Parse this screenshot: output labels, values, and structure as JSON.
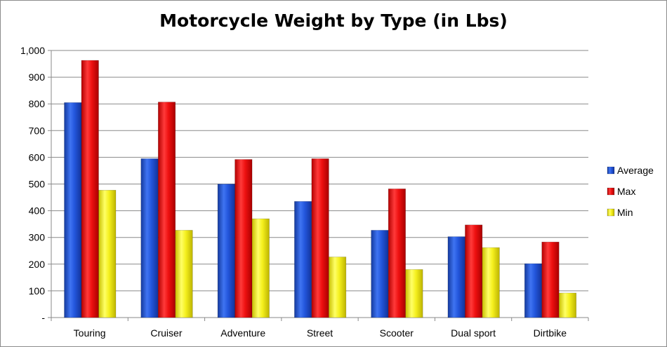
{
  "chart_data": {
    "type": "bar",
    "title": "Motorcycle Weight by Type (in Lbs)",
    "xlabel": "",
    "ylabel": "",
    "categories": [
      "Touring",
      "Cruiser",
      "Adventure",
      "Street",
      "Scooter",
      "Dual sport",
      "Dirtbike"
    ],
    "series": [
      {
        "name": "Average",
        "color": "#1f4fd6",
        "values": [
          805,
          595,
          500,
          435,
          327,
          303,
          202
        ]
      },
      {
        "name": "Max",
        "color": "#ee0f0f",
        "values": [
          963,
          807,
          592,
          595,
          482,
          347,
          283
        ]
      },
      {
        "name": "Min",
        "color": "#f2ee1a",
        "values": [
          477,
          327,
          370,
          227,
          180,
          262,
          92
        ]
      }
    ],
    "ylim": [
      0,
      1000
    ],
    "y_ticks": [
      "-",
      "100",
      "200",
      "300",
      "400",
      "500",
      "600",
      "700",
      "800",
      "900",
      "1,000"
    ],
    "grid": true,
    "legend_position": "right"
  }
}
